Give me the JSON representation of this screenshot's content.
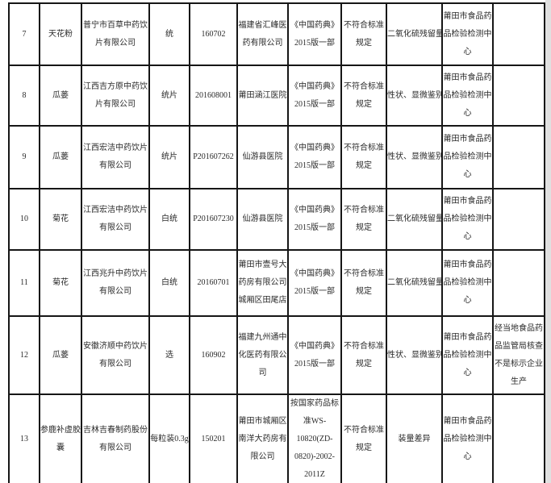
{
  "colors": {
    "page_background": "#ffffff",
    "table_border": "#161616",
    "text": "#2a2a2a",
    "page_edge_strip": "#e0e0e0"
  },
  "table": {
    "rows": [
      [
        "7",
        "天花粉",
        "普宁市百草中药饮片有限公司",
        "统",
        "160702",
        "福建省汇峰医药有限公司",
        "《中国药典》2015版一部",
        "不符合标准规定",
        "二氧化硫残留量",
        "莆田市食品药品检验检测中心",
        ""
      ],
      [
        "8",
        "瓜蒌",
        "江西吉方原中药饮片有限公司",
        "统片",
        "201608001",
        "莆田涵江医院",
        "《中国药典》2015版一部",
        "不符合标准规定",
        "性状、显微鉴别",
        "莆田市食品药品检验检测中心",
        ""
      ],
      [
        "9",
        "瓜蒌",
        "江西宏洁中药饮片有限公司",
        "统片",
        "P201607262",
        "仙游县医院",
        "《中国药典》2015版一部",
        "不符合标准规定",
        "性状、显微鉴别",
        "莆田市食品药品检验检测中心",
        ""
      ],
      [
        "10",
        "菊花",
        "江西宏洁中药饮片有限公司",
        "白统",
        "P201607230",
        "仙游县医院",
        "《中国药典》2015版一部",
        "不符合标准规定",
        "二氧化硫残留量",
        "莆田市食品药品检验检测中心",
        ""
      ],
      [
        "11",
        "菊花",
        "江西兆升中药饮片有限公司",
        "白统",
        "20160701",
        "莆田市壹号大药房有限公司城厢区田尾店",
        "《中国药典》2015版一部",
        "不符合标准规定",
        "二氧化硫残留量",
        "莆田市食品药品检验检测中心",
        ""
      ],
      [
        "12",
        "瓜蒌",
        "安徽济顺中药饮片有限公司",
        "选",
        "160902",
        "福建九州通中化医药有限公司",
        "《中国药典》2015版一部",
        "不符合标准规定",
        "性状、显微鉴别",
        "莆田市食品药品检验检测中心",
        "经当地食品药品监管局核查不是标示企业生产"
      ],
      [
        "13",
        "参鹿补虚胶囊",
        "吉林吉春制药股份有限公司",
        "每粒装0.3g",
        "150201",
        "莆田市城厢区南洋大药房有限公司",
        "按国家药品标准WS-10820(ZD-0820)-2002-2011Z",
        "不符合标准规定",
        "装量差异",
        "莆田市食品药品检验检测中心",
        ""
      ]
    ]
  }
}
